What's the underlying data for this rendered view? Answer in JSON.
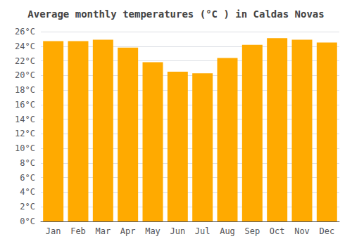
{
  "chart_data": {
    "type": "bar",
    "title": "Average monthly temperatures (°C ) in Caldas Novas",
    "categories": [
      "Jan",
      "Feb",
      "Mar",
      "Apr",
      "May",
      "Jun",
      "Jul",
      "Aug",
      "Sep",
      "Oct",
      "Nov",
      "Dec"
    ],
    "values": [
      24.7,
      24.7,
      24.9,
      23.8,
      21.8,
      20.5,
      20.3,
      22.4,
      24.2,
      25.1,
      24.9,
      24.5
    ],
    "color": "#FFAA00",
    "ylim": [
      0,
      26
    ],
    "yticks": [
      {
        "value": 0,
        "label": "0°C"
      },
      {
        "value": 2,
        "label": "2°C"
      },
      {
        "value": 4,
        "label": "4°C"
      },
      {
        "value": 6,
        "label": "6°C"
      },
      {
        "value": 8,
        "label": "8°C"
      },
      {
        "value": 10,
        "label": "10°C"
      },
      {
        "value": 12,
        "label": "12°C"
      },
      {
        "value": 14,
        "label": "14°C"
      },
      {
        "value": 16,
        "label": "16°C"
      },
      {
        "value": 18,
        "label": "18°C"
      },
      {
        "value": 20,
        "label": "20°C"
      },
      {
        "value": 22,
        "label": "22°C"
      },
      {
        "value": 24,
        "label": "24°C"
      },
      {
        "value": 26,
        "label": "26°C"
      }
    ],
    "grid": true
  }
}
